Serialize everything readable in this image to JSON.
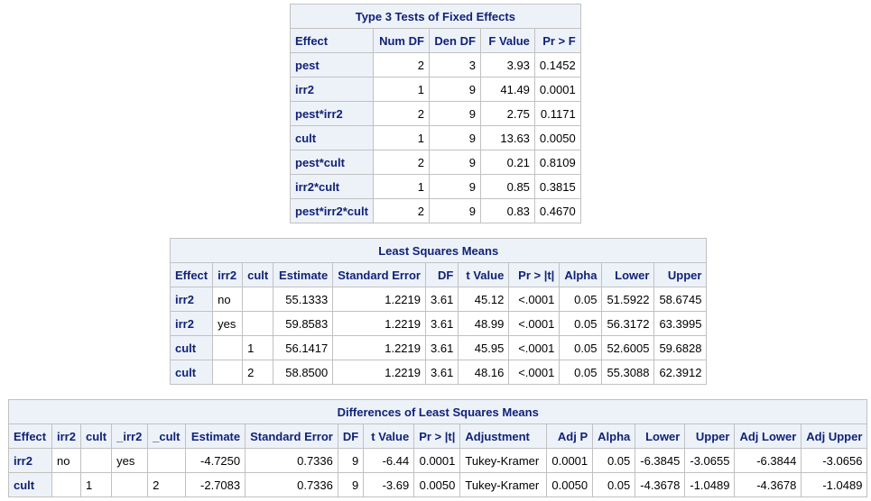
{
  "type3": {
    "title": "Type 3 Tests of Fixed Effects",
    "headers": [
      "Effect",
      "Num DF",
      "Den DF",
      "F Value",
      "Pr > F"
    ],
    "rows": [
      [
        "pest",
        "2",
        "3",
        "3.93",
        "0.1452"
      ],
      [
        "irr2",
        "1",
        "9",
        "41.49",
        "0.0001"
      ],
      [
        "pest*irr2",
        "2",
        "9",
        "2.75",
        "0.1171"
      ],
      [
        "cult",
        "1",
        "9",
        "13.63",
        "0.0050"
      ],
      [
        "pest*cult",
        "2",
        "9",
        "0.21",
        "0.8109"
      ],
      [
        "irr2*cult",
        "1",
        "9",
        "0.85",
        "0.3815"
      ],
      [
        "pest*irr2*cult",
        "2",
        "9",
        "0.83",
        "0.4670"
      ]
    ]
  },
  "lsmeans": {
    "title": "Least Squares Means",
    "headers": [
      "Effect",
      "irr2",
      "cult",
      "Estimate",
      "Standard Error",
      "DF",
      "t Value",
      "Pr > |t|",
      "Alpha",
      "Lower",
      "Upper"
    ],
    "rows": [
      [
        "irr2",
        "no",
        "",
        "55.1333",
        "1.2219",
        "3.61",
        "45.12",
        "<.0001",
        "0.05",
        "51.5922",
        "58.6745"
      ],
      [
        "irr2",
        "yes",
        "",
        "59.8583",
        "1.2219",
        "3.61",
        "48.99",
        "<.0001",
        "0.05",
        "56.3172",
        "63.3995"
      ],
      [
        "cult",
        "",
        "1",
        "56.1417",
        "1.2219",
        "3.61",
        "45.95",
        "<.0001",
        "0.05",
        "52.6005",
        "59.6828"
      ],
      [
        "cult",
        "",
        "2",
        "58.8500",
        "1.2219",
        "3.61",
        "48.16",
        "<.0001",
        "0.05",
        "55.3088",
        "62.3912"
      ]
    ]
  },
  "diffs": {
    "title": "Differences of Least Squares Means",
    "headers": [
      "Effect",
      "irr2",
      "cult",
      "_irr2",
      "_cult",
      "Estimate",
      "Standard Error",
      "DF",
      "t Value",
      "Pr > |t|",
      "Adjustment",
      "Adj P",
      "Alpha",
      "Lower",
      "Upper",
      "Adj Lower",
      "Adj Upper"
    ],
    "rows": [
      [
        "irr2",
        "no",
        "",
        "yes",
        "",
        "-4.7250",
        "0.7336",
        "9",
        "-6.44",
        "0.0001",
        "Tukey-Kramer",
        "0.0001",
        "0.05",
        "-6.3845",
        "-3.0655",
        "-6.3844",
        "-3.0656"
      ],
      [
        "cult",
        "",
        "1",
        "",
        "2",
        "-2.7083",
        "0.7336",
        "9",
        "-3.69",
        "0.0050",
        "Tukey-Kramer",
        "0.0050",
        "0.05",
        "-4.3678",
        "-1.0489",
        "-4.3678",
        "-1.0489"
      ]
    ]
  }
}
